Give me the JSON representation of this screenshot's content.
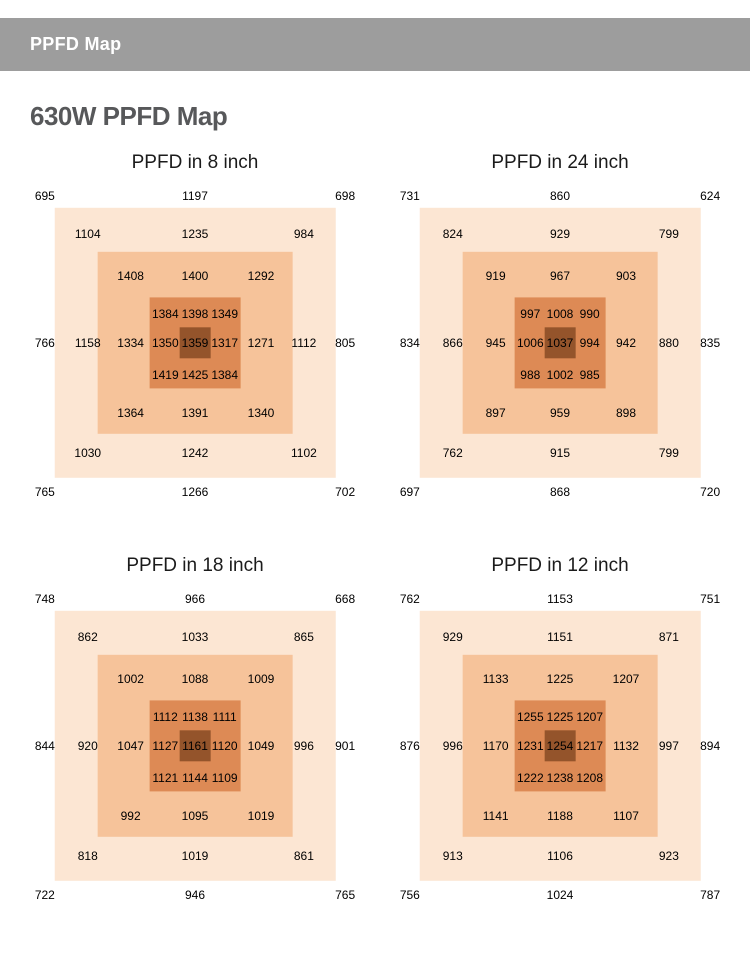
{
  "header": {
    "title": "PPFD Map"
  },
  "page": {
    "title": "630W PPFD Map"
  },
  "colors": {
    "header_bg": "#9d9d9d",
    "header_text": "#ffffff",
    "page_title": "#57585a",
    "ring1": "#fce6d3",
    "ring2": "#f6c39a",
    "ring3": "#dd8a55",
    "center": "#94542b",
    "value_text": "#000000"
  },
  "chart_data": [
    {
      "type": "heatmap",
      "title": "PPFD in 8 inch",
      "rings": {
        "outer_top": [
          "695",
          "1197",
          "698"
        ],
        "ring1_top": [
          "1104",
          "1235",
          "984"
        ],
        "ring2_top": [
          "1408",
          "1400",
          "1292"
        ],
        "inner_top": [
          "1384",
          "1398",
          "1349"
        ],
        "middle": [
          "766",
          "1158",
          "1334",
          "1350",
          "1359",
          "1317",
          "1271",
          "1112",
          "805"
        ],
        "inner_bottom": [
          "1419",
          "1425",
          "1384"
        ],
        "ring2_bottom": [
          "1364",
          "1391",
          "1340"
        ],
        "ring1_bottom": [
          "1030",
          "1242",
          "1102"
        ],
        "outer_bottom": [
          "765",
          "1266",
          "702"
        ]
      }
    },
    {
      "type": "heatmap",
      "title": "PPFD in 24 inch",
      "rings": {
        "outer_top": [
          "731",
          "860",
          "624"
        ],
        "ring1_top": [
          "824",
          "929",
          "799"
        ],
        "ring2_top": [
          "919",
          "967",
          "903"
        ],
        "inner_top": [
          "997",
          "1008",
          "990"
        ],
        "middle": [
          "834",
          "866",
          "945",
          "1006",
          "1037",
          "994",
          "942",
          "880",
          "835"
        ],
        "inner_bottom": [
          "988",
          "1002",
          "985"
        ],
        "ring2_bottom": [
          "897",
          "959",
          "898"
        ],
        "ring1_bottom": [
          "762",
          "915",
          "799"
        ],
        "outer_bottom": [
          "697",
          "868",
          "720"
        ]
      }
    },
    {
      "type": "heatmap",
      "title": "PPFD in 18 inch",
      "rings": {
        "outer_top": [
          "748",
          "966",
          "668"
        ],
        "ring1_top": [
          "862",
          "1033",
          "865"
        ],
        "ring2_top": [
          "1002",
          "1088",
          "1009"
        ],
        "inner_top": [
          "1112",
          "1138",
          "1111"
        ],
        "middle": [
          "844",
          "920",
          "1047",
          "1127",
          "1161",
          "1120",
          "1049",
          "996",
          "901"
        ],
        "inner_bottom": [
          "1121",
          "1144",
          "1109"
        ],
        "ring2_bottom": [
          "992",
          "1095",
          "1019"
        ],
        "ring1_bottom": [
          "818",
          "1019",
          "861"
        ],
        "outer_bottom": [
          "722",
          "946",
          "765"
        ]
      }
    },
    {
      "type": "heatmap",
      "title": "PPFD in 12 inch",
      "rings": {
        "outer_top": [
          "762",
          "1153",
          "751"
        ],
        "ring1_top": [
          "929",
          "1151",
          "871"
        ],
        "ring2_top": [
          "1133",
          "1225",
          "1207"
        ],
        "inner_top": [
          "1255",
          "1225",
          "1207"
        ],
        "middle": [
          "876",
          "996",
          "1170",
          "1231",
          "1254",
          "1217",
          "1132",
          "997",
          "894"
        ],
        "inner_bottom": [
          "1222",
          "1238",
          "1208"
        ],
        "ring2_bottom": [
          "1141",
          "1188",
          "1107"
        ],
        "ring1_bottom": [
          "913",
          "1106",
          "923"
        ],
        "outer_bottom": [
          "756",
          "1024",
          "787"
        ]
      }
    }
  ]
}
